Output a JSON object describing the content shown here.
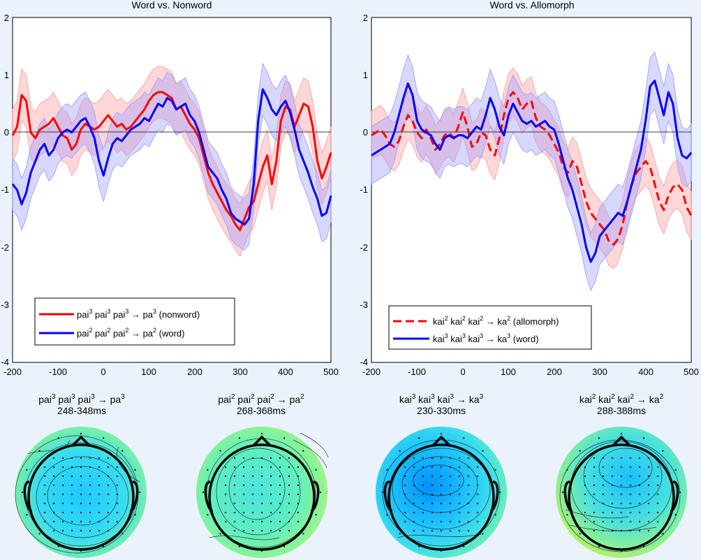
{
  "chart_data": [
    {
      "type": "line",
      "title": "Word vs. Nonword",
      "xlabel": "",
      "ylabel": "",
      "xlim": [
        -200,
        500
      ],
      "ylim": [
        -4,
        2
      ],
      "x_ticks": [
        "-200",
        "-100",
        "0",
        "100",
        "200",
        "300",
        "400",
        "500"
      ],
      "y_ticks": [
        "2",
        "1",
        "0",
        "-1",
        "-2",
        "-3",
        "-4"
      ],
      "legend": "bottom-left",
      "series": [
        {
          "name": "nonword",
          "legend_parts": [
            "pai",
            "3",
            " pai",
            "3",
            " pai",
            "3",
            " → pa",
            "3",
            " (nonword)"
          ],
          "color": "#ff0000",
          "band_color": "#ff9a9a",
          "style": "solid",
          "x": [
            -200,
            -190,
            -180,
            -170,
            -160,
            -150,
            -140,
            -130,
            -120,
            -110,
            -100,
            -90,
            -80,
            -70,
            -60,
            -50,
            -40,
            -30,
            -20,
            -10,
            0,
            10,
            20,
            30,
            40,
            50,
            60,
            70,
            80,
            90,
            100,
            110,
            120,
            130,
            140,
            150,
            160,
            170,
            180,
            190,
            200,
            210,
            220,
            230,
            240,
            250,
            260,
            270,
            280,
            290,
            300,
            310,
            320,
            330,
            340,
            350,
            360,
            370,
            380,
            390,
            400,
            410,
            420,
            430,
            440,
            450,
            460,
            470,
            480,
            490,
            500
          ],
          "values": [
            -0.05,
            0.1,
            0.65,
            0.55,
            0.0,
            -0.1,
            0.05,
            0.1,
            0.15,
            0.25,
            0.1,
            -0.05,
            -0.1,
            -0.3,
            -0.2,
            0.05,
            0.15,
            0.1,
            0.05,
            0.1,
            0.2,
            0.3,
            0.2,
            0.1,
            0.15,
            0.05,
            0.1,
            0.2,
            0.3,
            0.4,
            0.55,
            0.65,
            0.7,
            0.7,
            0.65,
            0.6,
            0.4,
            0.45,
            0.3,
            0.15,
            0.05,
            -0.1,
            -0.4,
            -0.7,
            -0.9,
            -1.05,
            -1.2,
            -1.35,
            -1.45,
            -1.6,
            -1.7,
            -1.5,
            -1.3,
            -1.2,
            -0.9,
            -0.6,
            -0.4,
            -0.9,
            -0.5,
            0.2,
            0.45,
            0.4,
            0.1,
            0.3,
            0.5,
            0.45,
            0.1,
            -0.5,
            -0.8,
            -0.6,
            -0.35
          ],
          "band": 0.45
        },
        {
          "name": "word",
          "legend_parts": [
            "pai",
            "2",
            " pai",
            "2",
            " pai",
            "2",
            " → pa",
            "2",
            " (word)"
          ],
          "color": "#0000ff",
          "band_color": "#9a9aff",
          "style": "solid",
          "x": [
            -200,
            -190,
            -180,
            -170,
            -160,
            -150,
            -140,
            -130,
            -120,
            -110,
            -100,
            -90,
            -80,
            -70,
            -60,
            -50,
            -40,
            -30,
            -20,
            -10,
            0,
            10,
            20,
            30,
            40,
            50,
            60,
            70,
            80,
            90,
            100,
            110,
            120,
            130,
            140,
            150,
            160,
            170,
            180,
            190,
            200,
            210,
            220,
            230,
            240,
            250,
            260,
            270,
            280,
            290,
            300,
            310,
            320,
            330,
            340,
            350,
            360,
            370,
            380,
            390,
            400,
            410,
            420,
            430,
            440,
            450,
            460,
            470,
            480,
            490,
            500
          ],
          "values": [
            -0.9,
            -1.0,
            -1.25,
            -1.05,
            -0.7,
            -0.5,
            -0.3,
            -0.2,
            -0.4,
            -0.3,
            -0.1,
            0.0,
            0.05,
            0.0,
            0.1,
            0.2,
            0.25,
            0.1,
            -0.1,
            -0.5,
            -0.75,
            -0.45,
            -0.2,
            -0.1,
            -0.15,
            -0.05,
            0.05,
            0.1,
            0.15,
            0.25,
            0.2,
            0.35,
            0.5,
            0.45,
            0.6,
            0.55,
            0.4,
            0.45,
            0.5,
            0.3,
            0.2,
            0.0,
            -0.3,
            -0.6,
            -0.7,
            -0.8,
            -1.0,
            -1.15,
            -1.4,
            -1.5,
            -1.55,
            -1.6,
            -1.5,
            -0.9,
            0.2,
            0.75,
            0.6,
            0.4,
            0.3,
            0.45,
            0.55,
            0.35,
            0.05,
            -0.3,
            -0.5,
            -0.7,
            -0.95,
            -1.15,
            -1.45,
            -1.4,
            -1.1
          ],
          "band": 0.45
        }
      ]
    },
    {
      "type": "line",
      "title": "Word vs. Allomorph",
      "xlabel": "",
      "ylabel": "",
      "xlim": [
        -200,
        500
      ],
      "ylim": [
        -4,
        2
      ],
      "x_ticks": [
        "-200",
        "-100",
        "0",
        "100",
        "200",
        "300",
        "400",
        "500"
      ],
      "y_ticks": [
        "2",
        "1",
        "0",
        "-1",
        "-2",
        "-3",
        "-4"
      ],
      "legend": "bottom-left",
      "series": [
        {
          "name": "allomorph",
          "legend_parts": [
            "kai",
            "2",
            " kai",
            "2",
            " kai",
            "2",
            " → ka",
            "2",
            " (allomorph)"
          ],
          "color": "#ff0000",
          "band_color": "#ff9a9a",
          "style": "dashed",
          "x": [
            -200,
            -190,
            -180,
            -170,
            -160,
            -150,
            -140,
            -130,
            -120,
            -110,
            -100,
            -90,
            -80,
            -70,
            -60,
            -50,
            -40,
            -30,
            -20,
            -10,
            0,
            10,
            20,
            30,
            40,
            50,
            60,
            70,
            80,
            90,
            100,
            110,
            120,
            130,
            140,
            150,
            160,
            170,
            180,
            190,
            200,
            210,
            220,
            230,
            240,
            250,
            260,
            270,
            280,
            290,
            300,
            310,
            320,
            330,
            340,
            350,
            360,
            370,
            380,
            390,
            400,
            410,
            420,
            430,
            440,
            450,
            460,
            470,
            480,
            490,
            500
          ],
          "values": [
            -0.05,
            0.0,
            0.05,
            -0.05,
            -0.2,
            -0.25,
            -0.15,
            0.1,
            0.3,
            0.2,
            0.0,
            -0.1,
            0.05,
            -0.1,
            -0.3,
            -0.2,
            -0.05,
            0.0,
            -0.1,
            0.1,
            0.35,
            0.1,
            -0.25,
            -0.2,
            0.0,
            -0.05,
            -0.3,
            -0.4,
            -0.1,
            0.3,
            0.6,
            0.7,
            0.6,
            0.4,
            0.5,
            0.55,
            0.25,
            0.1,
            0.05,
            -0.05,
            -0.2,
            -0.35,
            -0.6,
            -0.7,
            -0.5,
            -0.6,
            -0.9,
            -1.2,
            -1.4,
            -1.5,
            -1.6,
            -1.7,
            -1.9,
            -1.95,
            -1.85,
            -1.6,
            -1.2,
            -0.9,
            -0.7,
            -0.6,
            -0.5,
            -0.6,
            -0.9,
            -1.2,
            -1.35,
            -1.1,
            -0.95,
            -0.9,
            -1.0,
            -1.3,
            -1.45
          ],
          "band": 0.42
        },
        {
          "name": "word",
          "legend_parts": [
            "kai",
            "3",
            " kai",
            "3",
            " kai",
            "3",
            " → ka",
            "3",
            " (word)"
          ],
          "color": "#0000ff",
          "band_color": "#9a9aff",
          "style": "solid",
          "x": [
            -200,
            -190,
            -180,
            -170,
            -160,
            -150,
            -140,
            -130,
            -120,
            -110,
            -100,
            -90,
            -80,
            -70,
            -60,
            -50,
            -40,
            -30,
            -20,
            -10,
            0,
            10,
            20,
            30,
            40,
            50,
            60,
            70,
            80,
            90,
            100,
            110,
            120,
            130,
            140,
            150,
            160,
            170,
            180,
            190,
            200,
            210,
            220,
            230,
            240,
            250,
            260,
            270,
            280,
            290,
            300,
            310,
            320,
            330,
            340,
            350,
            360,
            370,
            380,
            390,
            400,
            410,
            420,
            430,
            440,
            450,
            460,
            470,
            480,
            490,
            500
          ],
          "values": [
            -0.4,
            -0.35,
            -0.3,
            -0.25,
            -0.2,
            0.0,
            0.3,
            0.6,
            0.85,
            0.65,
            0.2,
            0.05,
            0.0,
            -0.05,
            -0.2,
            -0.3,
            -0.1,
            -0.05,
            -0.1,
            -0.05,
            -0.05,
            -0.1,
            0.0,
            0.1,
            0.05,
            0.3,
            0.6,
            0.4,
            0.1,
            -0.05,
            0.3,
            0.5,
            0.35,
            0.2,
            0.15,
            0.2,
            0.1,
            0.15,
            0.2,
            0.1,
            0.05,
            -0.2,
            -0.5,
            -0.8,
            -1.0,
            -1.3,
            -1.6,
            -2.0,
            -2.25,
            -2.1,
            -1.8,
            -1.7,
            -1.6,
            -1.5,
            -1.4,
            -1.45,
            -1.2,
            -0.9,
            -0.6,
            -0.3,
            0.2,
            0.8,
            0.9,
            0.6,
            0.3,
            0.7,
            0.5,
            -0.1,
            -0.4,
            -0.45,
            -0.35
          ],
          "band": 0.5
        }
      ]
    }
  ],
  "topomaps": [
    {
      "label_parts": [
        "pai",
        "3",
        " pai",
        "3",
        " pai",
        "3",
        " → pa",
        "3"
      ],
      "time_range": "248-348ms"
    },
    {
      "label_parts": [
        "pai",
        "2",
        " pai",
        "2",
        " pai",
        "2",
        " → pa",
        "2"
      ],
      "time_range": "268-368ms"
    },
    {
      "label_parts": [
        "kai",
        "3",
        " kai",
        "3",
        " kai",
        "3",
        " → ka",
        "3"
      ],
      "time_range": "230-330ms"
    },
    {
      "label_parts": [
        "kai",
        "2",
        " kai",
        "2",
        " kai",
        "2",
        " → ka",
        "2"
      ],
      "time_range": "288-388ms"
    }
  ]
}
